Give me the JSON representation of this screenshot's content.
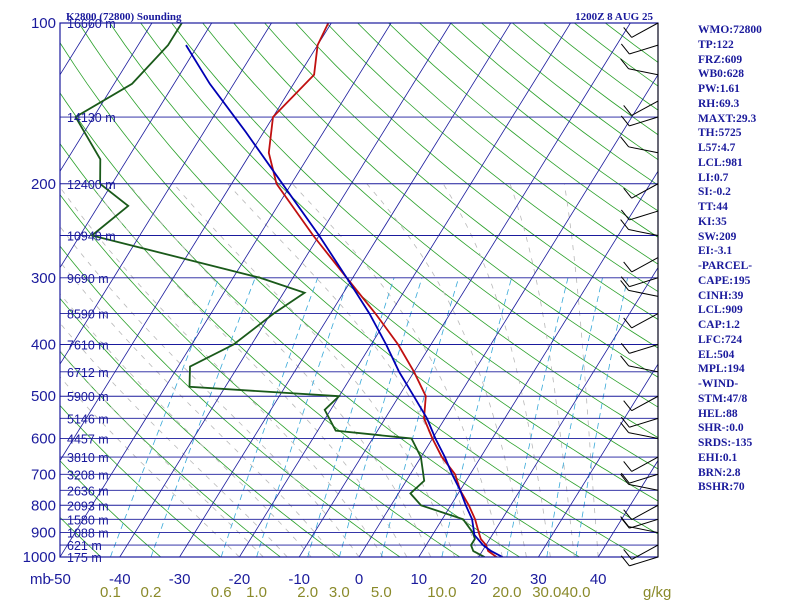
{
  "header": {
    "station": "K2800 (72800) Sounding",
    "time": "1200Z  8 AUG 25"
  },
  "pressure_axis_unit": "mb",
  "mixing_ratio_unit": "g/kg",
  "indices": [
    "WMO:72800",
    "TP:122",
    "FRZ:609",
    "WB0:628",
    "PW:1.61",
    "RH:69.3",
    "MAXT:29.3",
    "TH:5725",
    "L57:4.7",
    "LCL:981",
    "LI:0.7",
    "SI:-0.2",
    "TT:44",
    "KI:35",
    "SW:209",
    "EI:-3.1",
    "-PARCEL-",
    "CAPE:195",
    "CINH:39",
    "LCL:909",
    "CAP:1.2",
    "LFC:724",
    "EL:504",
    "MPL:194",
    "-WIND-",
    "STM:47/8",
    "HEL:88",
    "SHR-:0.0",
    "SRDS:-135",
    "EHI:0.1",
    "BRN:2.8",
    "BSHR:70"
  ],
  "colors": {
    "label": "#1a1a9c",
    "frame": "#1a1a9c",
    "isobar": "#1a1a9c",
    "isotherm": "#1a1a9c",
    "dry_adiabat": "#2aa02a",
    "moist_adiabat": "#b8b8b8",
    "mixing_ratio": "#36a8d8",
    "temperature": "#c01010",
    "dewpoint": "#1a5a1a",
    "parcel": "#0000b4",
    "mixing_ratio_labels": "#8a8a2a",
    "wind_barbs": "#000000"
  },
  "chart_data": {
    "type": "line",
    "title": "K2800 (72800) Sounding",
    "subtitle": "1200Z  8 AUG 25",
    "x_scale": "skewed temperature",
    "y_scale": "log",
    "xlabel": "",
    "ylabel": "mb",
    "xlim": [
      -50,
      50
    ],
    "ylim": [
      1000,
      100
    ],
    "pressure_ticks": [
      100,
      200,
      300,
      400,
      500,
      600,
      700,
      800,
      900,
      1000
    ],
    "temperature_ticks": [
      -50,
      -40,
      -30,
      -20,
      -10,
      0,
      10,
      20,
      30,
      40
    ],
    "height_labels": [
      {
        "p": 100,
        "label": "16660 m"
      },
      {
        "p": 150,
        "label": "14130 m"
      },
      {
        "p": 200,
        "label": "12400 m"
      },
      {
        "p": 250,
        "label": "10940 m"
      },
      {
        "p": 300,
        "label": "9690 m"
      },
      {
        "p": 350,
        "label": "8590 m"
      },
      {
        "p": 400,
        "label": "7610 m"
      },
      {
        "p": 450,
        "label": "6712 m"
      },
      {
        "p": 500,
        "label": "5900 m"
      },
      {
        "p": 550,
        "label": "5146 m"
      },
      {
        "p": 600,
        "label": "4457 m"
      },
      {
        "p": 650,
        "label": "3810 m"
      },
      {
        "p": 700,
        "label": "3208 m"
      },
      {
        "p": 750,
        "label": "2636 m"
      },
      {
        "p": 800,
        "label": "2093 m"
      },
      {
        "p": 850,
        "label": "1580 m"
      },
      {
        "p": 900,
        "label": "1088 m"
      },
      {
        "p": 950,
        "label": "621 m"
      },
      {
        "p": 1000,
        "label": "175 m"
      }
    ],
    "mixing_ratio_labels": [
      "0.1",
      "0.2",
      "0.6",
      "1.0",
      "2.0",
      "3.0",
      "5.0",
      "10.0",
      "20.0",
      "30.0",
      "40.0"
    ],
    "series": [
      {
        "name": "temperature",
        "points": [
          [
            1000,
            23.0
          ],
          [
            975,
            21.0
          ],
          [
            950,
            20.0
          ],
          [
            925,
            18.5
          ],
          [
            900,
            17.5
          ],
          [
            850,
            15.5
          ],
          [
            800,
            13.0
          ],
          [
            750,
            10.0
          ],
          [
            700,
            7.5
          ],
          [
            650,
            3.5
          ],
          [
            600,
            0.0
          ],
          [
            550,
            -3.5
          ],
          [
            500,
            -5.5
          ],
          [
            450,
            -10.0
          ],
          [
            400,
            -15.5
          ],
          [
            350,
            -22.5
          ],
          [
            300,
            -31.0
          ],
          [
            250,
            -41.0
          ],
          [
            200,
            -52.5
          ],
          [
            175,
            -57.0
          ],
          [
            150,
            -60.0
          ],
          [
            125,
            -57.5
          ],
          [
            110,
            -60.0
          ],
          [
            100,
            -60.5
          ]
        ]
      },
      {
        "name": "dewpoint",
        "points": [
          [
            1000,
            21.0
          ],
          [
            975,
            18.5
          ],
          [
            950,
            17.5
          ],
          [
            925,
            17.5
          ],
          [
            900,
            16.5
          ],
          [
            850,
            13.5
          ],
          [
            800,
            5.0
          ],
          [
            760,
            2.0
          ],
          [
            720,
            3.0
          ],
          [
            650,
            0.0
          ],
          [
            600,
            -3.5
          ],
          [
            580,
            -17.0
          ],
          [
            530,
            -21.0
          ],
          [
            500,
            -20.0
          ],
          [
            480,
            -46.0
          ],
          [
            440,
            -48.0
          ],
          [
            400,
            -43.0
          ],
          [
            350,
            -39.5
          ],
          [
            320,
            -36.5
          ],
          [
            300,
            -45.5
          ],
          [
            250,
            -78.0
          ],
          [
            220,
            -75.0
          ],
          [
            200,
            -82.0
          ],
          [
            180,
            -84.5
          ],
          [
            150,
            -93.0
          ],
          [
            130,
            -87.0
          ],
          [
            110,
            -85.0
          ],
          [
            100,
            -85.0
          ]
        ]
      },
      {
        "name": "parcel",
        "points": [
          [
            1000,
            24.0
          ],
          [
            975,
            21.5
          ],
          [
            950,
            19.5
          ],
          [
            909,
            17.0
          ],
          [
            850,
            15.0
          ],
          [
            800,
            12.5
          ],
          [
            750,
            10.0
          ],
          [
            700,
            7.0
          ],
          [
            650,
            4.0
          ],
          [
            600,
            0.5
          ],
          [
            550,
            -3.0
          ],
          [
            500,
            -7.5
          ],
          [
            450,
            -12.5
          ],
          [
            400,
            -17.5
          ],
          [
            350,
            -23.5
          ],
          [
            300,
            -31.0
          ],
          [
            250,
            -40.0
          ],
          [
            200,
            -51.5
          ],
          [
            160,
            -63.0
          ],
          [
            130,
            -74.0
          ],
          [
            110,
            -82.0
          ]
        ]
      }
    ],
    "wind_profile_shown": true,
    "grid": true,
    "legend": "none"
  }
}
